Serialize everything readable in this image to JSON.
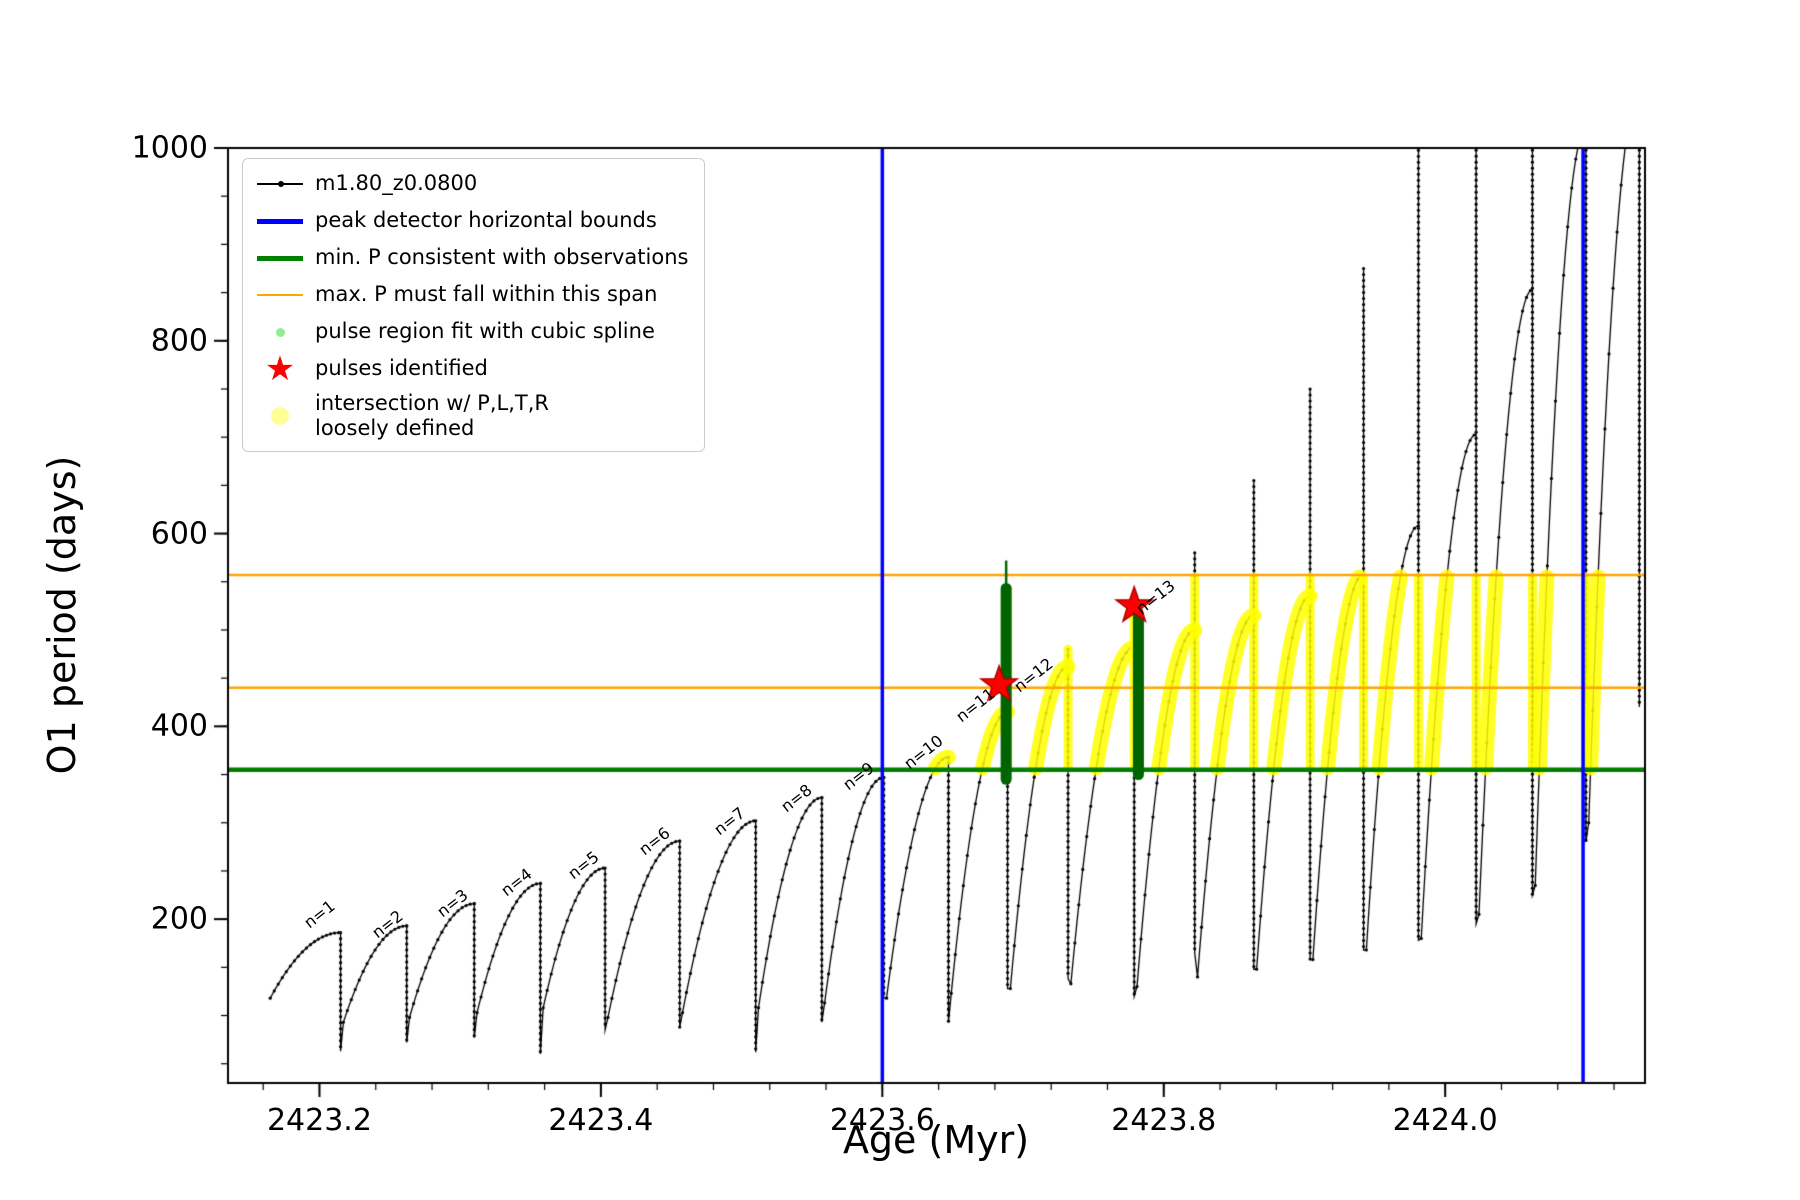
{
  "axes": {
    "xlabel": "Age (Myr)",
    "ylabel": "O1 period (days)",
    "xlim": [
      2423.135,
      2424.142
    ],
    "ylim": [
      30,
      1000
    ],
    "x_ticks": [
      {
        "value": 2423.2,
        "label": "2423.2"
      },
      {
        "value": 2423.4,
        "label": "2423.4"
      },
      {
        "value": 2423.6,
        "label": "2423.6"
      },
      {
        "value": 2423.8,
        "label": "2423.8"
      },
      {
        "value": 2424.0,
        "label": "2424.0"
      }
    ],
    "y_ticks": [
      {
        "value": 200,
        "label": "200"
      },
      {
        "value": 400,
        "label": "400"
      },
      {
        "value": 600,
        "label": "600"
      },
      {
        "value": 800,
        "label": "800"
      },
      {
        "value": 1000,
        "label": "1000"
      }
    ],
    "x_minor_step": 0.04,
    "y_minor_step": 50
  },
  "colors": {
    "series": "#000000",
    "peak_bounds": "#0000ff",
    "min_p": "#007f00",
    "max_p_span": "#ffa500",
    "spline_fit_marker": "#90ee90",
    "spline_bar": "#006400",
    "pulse_star": "#ff0000",
    "pulse_star_edge": "#b00000",
    "intersection": "#ffff00"
  },
  "legend": {
    "items": [
      {
        "label": "m1.80_z0.0800",
        "marker": "line-dot",
        "color": "#000000"
      },
      {
        "label": "peak detector horizontal bounds",
        "marker": "thick-line",
        "color": "#0000ff"
      },
      {
        "label": "min. P consistent with observations",
        "marker": "thick-line",
        "color": "#007f00"
      },
      {
        "label": "max. P must fall within this span",
        "marker": "thin-line",
        "color": "#ffa500"
      },
      {
        "label": "pulse region fit with cubic spline",
        "marker": "dot",
        "color": "#90ee90"
      },
      {
        "label": "pulses identified",
        "marker": "star",
        "color": "#ff0000"
      },
      {
        "label": "intersection w/ P,L,T,R\nloosely defined",
        "marker": "blob",
        "color": "#ffff00"
      }
    ]
  },
  "chart_data": {
    "type": "line",
    "series_name": "m1.80_z0.0800",
    "title": "",
    "xlabel": "Age (Myr)",
    "ylabel": "O1 period (days)",
    "xlim": [
      2423.135,
      2424.142
    ],
    "ylim": [
      30,
      1000
    ],
    "pulses": [
      {
        "x0": 2423.165,
        "x1": 2423.215,
        "y0": 118,
        "peak": 186,
        "spike": null,
        "drop": 63
      },
      {
        "x0": 2423.217,
        "x1": 2423.262,
        "y0": 93,
        "peak": 193,
        "spike": null,
        "drop": 72
      },
      {
        "x0": 2423.264,
        "x1": 2423.31,
        "y0": 98,
        "peak": 216,
        "spike": null,
        "drop": 77
      },
      {
        "x0": 2423.312,
        "x1": 2423.357,
        "y0": 103,
        "peak": 237,
        "spike": null,
        "drop": 60
      },
      {
        "x0": 2423.359,
        "x1": 2423.403,
        "y0": 108,
        "peak": 253,
        "spike": null,
        "drop": 85
      },
      {
        "x0": 2423.405,
        "x1": 2423.456,
        "y0": 98,
        "peak": 281,
        "spike": null,
        "drop": 88
      },
      {
        "x0": 2423.458,
        "x1": 2423.51,
        "y0": 103,
        "peak": 302,
        "spike": null,
        "drop": 62
      },
      {
        "x0": 2423.512,
        "x1": 2423.557,
        "y0": 108,
        "peak": 326,
        "spike": null,
        "drop": 93
      },
      {
        "x0": 2423.559,
        "x1": 2423.601,
        "y0": 113,
        "peak": 347,
        "spike": null,
        "drop": 118
      },
      {
        "x0": 2423.603,
        "x1": 2423.647,
        "y0": 118,
        "peak": 368,
        "spike": null,
        "drop": 93
      },
      {
        "x0": 2423.649,
        "x1": 2423.689,
        "y0": 123,
        "peak": 415,
        "spike": 543,
        "drop": 128
      },
      {
        "x0": 2423.691,
        "x1": 2423.732,
        "y0": 128,
        "peak": 462,
        "spike": 480,
        "drop": 138
      },
      {
        "x0": 2423.734,
        "x1": 2423.779,
        "y0": 133,
        "peak": 482,
        "spike": 527,
        "drop": 120
      },
      {
        "x0": 2423.781,
        "x1": 2423.822,
        "y0": 130,
        "peak": 500,
        "spike": 580,
        "drop": 165
      },
      {
        "x0": 2423.824,
        "x1": 2423.864,
        "y0": 140,
        "peak": 515,
        "spike": 655,
        "drop": 148
      },
      {
        "x0": 2423.866,
        "x1": 2423.904,
        "y0": 148,
        "peak": 535,
        "spike": 750,
        "drop": 158
      },
      {
        "x0": 2423.906,
        "x1": 2423.942,
        "y0": 158,
        "peak": 558,
        "spike": 875,
        "drop": 168
      },
      {
        "x0": 2423.944,
        "x1": 2423.981,
        "y0": 168,
        "peak": 608,
        "spike": 1010,
        "drop": 178
      },
      {
        "x0": 2423.983,
        "x1": 2424.022,
        "y0": 180,
        "peak": 703,
        "spike": 1060,
        "drop": 195
      },
      {
        "x0": 2424.024,
        "x1": 2424.062,
        "y0": 205,
        "peak": 853,
        "spike": 1060,
        "drop": 225
      },
      {
        "x0": 2424.064,
        "x1": 2424.1,
        "y0": 235,
        "peak": 1020,
        "spike": 1060,
        "drop": 280
      },
      {
        "x0": 2424.102,
        "x1": 2424.138,
        "y0": 300,
        "peak": 1060,
        "spike": null,
        "drop": 420
      }
    ],
    "peak_detector_bounds_x": [
      2423.6,
      2424.098
    ],
    "min_p_line_y": 355,
    "max_p_span_y": [
      440,
      557
    ],
    "yellow_band": [
      357,
      555
    ],
    "yellow_xmin": 2423.59,
    "spline_bars": [
      {
        "x": 2423.688,
        "y0": 345,
        "y1": 543,
        "whisker_y1": 572
      },
      {
        "x": 2423.782,
        "y0": 350,
        "y1": 515,
        "whisker_y1": null
      }
    ],
    "stars": [
      {
        "x": 2423.683,
        "y": 443
      },
      {
        "x": 2423.779,
        "y": 525
      }
    ],
    "annotations": [
      {
        "label": "n=1",
        "x": 2423.195,
        "y": 187
      },
      {
        "label": "n=2",
        "x": 2423.243,
        "y": 176
      },
      {
        "label": "n=3",
        "x": 2423.289,
        "y": 198
      },
      {
        "label": "n=4",
        "x": 2423.335,
        "y": 220
      },
      {
        "label": "n=5",
        "x": 2423.382,
        "y": 238
      },
      {
        "label": "n=6",
        "x": 2423.433,
        "y": 262
      },
      {
        "label": "n=7",
        "x": 2423.486,
        "y": 283
      },
      {
        "label": "n=8",
        "x": 2423.534,
        "y": 307
      },
      {
        "label": "n=9",
        "x": 2423.578,
        "y": 330
      },
      {
        "label": "n=10",
        "x": 2423.621,
        "y": 352
      },
      {
        "label": "n=11",
        "x": 2423.658,
        "y": 400
      },
      {
        "label": "n=12",
        "x": 2423.699,
        "y": 432
      },
      {
        "label": "n=13",
        "x": 2423.786,
        "y": 512
      }
    ]
  }
}
